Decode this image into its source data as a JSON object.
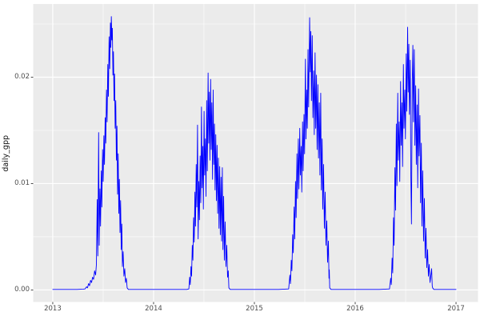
{
  "colors": {
    "panel_background": "#EBEBEB",
    "gridline": "#FFFFFF",
    "series_line": "#0000FF",
    "tick_mark": "#333333",
    "tick_label": "#4D4D4D",
    "axis_title": "#111111",
    "outer_background": "#FFFFFF"
  },
  "chart_data": {
    "type": "line",
    "title": "",
    "xlabel": "",
    "ylabel": "daily_gpp",
    "grid": true,
    "legend": false,
    "x_domain": [
      2012.806,
      2017.218
    ],
    "y_domain": [
      -0.00113,
      0.02688
    ],
    "x_ticks": [
      2013,
      2014,
      2015,
      2016,
      2017
    ],
    "x_tick_labels": [
      "2013",
      "2014",
      "2015",
      "2016",
      "2017"
    ],
    "x_minor_ticks": [
      2013.5,
      2014.5,
      2015.5,
      2016.5
    ],
    "y_ticks": [
      0,
      0.01,
      0.02
    ],
    "y_tick_labels": [
      "0.00",
      "0.01",
      "0.02"
    ],
    "y_minor_ticks": [
      0.005,
      0.015,
      0.025
    ],
    "series": [
      {
        "name": "daily_gpp",
        "color": "#0000FF",
        "points": [
          [
            2013.0,
            5e-05
          ],
          [
            2013.08,
            5e-05
          ],
          [
            2013.16,
            5e-05
          ],
          [
            2013.24,
            5e-05
          ],
          [
            2013.3,
            8e-05
          ],
          [
            2013.32,
            0.0001
          ],
          [
            2013.335,
            0.0003
          ],
          [
            2013.345,
            0.0002
          ],
          [
            2013.355,
            0.0006
          ],
          [
            2013.365,
            0.0004
          ],
          [
            2013.375,
            0.0009
          ],
          [
            2013.385,
            0.0007
          ],
          [
            2013.395,
            0.0012
          ],
          [
            2013.405,
            0.001
          ],
          [
            2013.415,
            0.0018
          ],
          [
            2013.425,
            0.0014
          ],
          [
            2013.433,
            0.0024
          ],
          [
            2013.441,
            0.0085
          ],
          [
            2013.447,
            0.0032
          ],
          [
            2013.455,
            0.0148
          ],
          [
            2013.461,
            0.0042
          ],
          [
            2013.468,
            0.0095
          ],
          [
            2013.474,
            0.006
          ],
          [
            2013.481,
            0.0112
          ],
          [
            2013.487,
            0.0078
          ],
          [
            2013.494,
            0.0132
          ],
          [
            2013.5,
            0.0102
          ],
          [
            2013.507,
            0.0145
          ],
          [
            2013.513,
            0.0118
          ],
          [
            2013.52,
            0.0162
          ],
          [
            2013.526,
            0.0138
          ],
          [
            2013.533,
            0.0188
          ],
          [
            2013.539,
            0.0158
          ],
          [
            2013.546,
            0.0212
          ],
          [
            2013.552,
            0.0182
          ],
          [
            2013.559,
            0.0238
          ],
          [
            2013.565,
            0.0208
          ],
          [
            2013.572,
            0.0251
          ],
          [
            2013.576,
            0.0228
          ],
          [
            2013.581,
            0.0257
          ],
          [
            2013.586,
            0.0235
          ],
          [
            2013.591,
            0.0246
          ],
          [
            2013.597,
            0.0202
          ],
          [
            2013.602,
            0.0224
          ],
          [
            2013.608,
            0.0178
          ],
          [
            2013.613,
            0.0203
          ],
          [
            2013.619,
            0.0152
          ],
          [
            2013.625,
            0.0178
          ],
          [
            2013.631,
            0.0122
          ],
          [
            2013.637,
            0.0154
          ],
          [
            2013.643,
            0.009
          ],
          [
            2013.649,
            0.0128
          ],
          [
            2013.655,
            0.0072
          ],
          [
            2013.661,
            0.0104
          ],
          [
            2013.667,
            0.0054
          ],
          [
            2013.673,
            0.0084
          ],
          [
            2013.679,
            0.0038
          ],
          [
            2013.685,
            0.0062
          ],
          [
            2013.691,
            0.0022
          ],
          [
            2013.698,
            0.0036
          ],
          [
            2013.706,
            0.0013
          ],
          [
            2013.714,
            0.002
          ],
          [
            2013.722,
            0.0007
          ],
          [
            2013.73,
            0.0011
          ],
          [
            2013.738,
            0.0002
          ],
          [
            2013.75,
            5e-05
          ],
          [
            2013.85,
            5e-05
          ],
          [
            2013.95,
            5e-05
          ],
          [
            2014.05,
            5e-05
          ],
          [
            2014.15,
            5e-05
          ],
          [
            2014.25,
            5e-05
          ],
          [
            2014.33,
            5e-05
          ],
          [
            2014.35,
            0.0001
          ],
          [
            2014.358,
            0.0012
          ],
          [
            2014.364,
            0.0005
          ],
          [
            2014.371,
            0.0022
          ],
          [
            2014.377,
            0.0013
          ],
          [
            2014.384,
            0.0042
          ],
          [
            2014.39,
            0.0028
          ],
          [
            2014.397,
            0.0068
          ],
          [
            2014.403,
            0.0045
          ],
          [
            2014.41,
            0.0092
          ],
          [
            2014.416,
            0.006
          ],
          [
            2014.423,
            0.0118
          ],
          [
            2014.429,
            0.0078
          ],
          [
            2014.436,
            0.0155
          ],
          [
            2014.442,
            0.0048
          ],
          [
            2014.449,
            0.0102
          ],
          [
            2014.455,
            0.0066
          ],
          [
            2014.462,
            0.0126
          ],
          [
            2014.468,
            0.0082
          ],
          [
            2014.475,
            0.0172
          ],
          [
            2014.481,
            0.0096
          ],
          [
            2014.488,
            0.0135
          ],
          [
            2014.494,
            0.0076
          ],
          [
            2014.501,
            0.0168
          ],
          [
            2014.507,
            0.0108
          ],
          [
            2014.514,
            0.0142
          ],
          [
            2014.52,
            0.0088
          ],
          [
            2014.527,
            0.0178
          ],
          [
            2014.533,
            0.0112
          ],
          [
            2014.541,
            0.0204
          ],
          [
            2014.547,
            0.0138
          ],
          [
            2014.553,
            0.0186
          ],
          [
            2014.559,
            0.0122
          ],
          [
            2014.566,
            0.0198
          ],
          [
            2014.572,
            0.0132
          ],
          [
            2014.578,
            0.0176
          ],
          [
            2014.585,
            0.0104
          ],
          [
            2014.591,
            0.0188
          ],
          [
            2014.597,
            0.0118
          ],
          [
            2014.604,
            0.0156
          ],
          [
            2014.61,
            0.0094
          ],
          [
            2014.617,
            0.0146
          ],
          [
            2014.623,
            0.0084
          ],
          [
            2014.63,
            0.0136
          ],
          [
            2014.636,
            0.0072
          ],
          [
            2014.643,
            0.0124
          ],
          [
            2014.649,
            0.0058
          ],
          [
            2014.656,
            0.0116
          ],
          [
            2014.662,
            0.0052
          ],
          [
            2014.669,
            0.0106
          ],
          [
            2014.675,
            0.0046
          ],
          [
            2014.682,
            0.0115
          ],
          [
            2014.688,
            0.0038
          ],
          [
            2014.695,
            0.0088
          ],
          [
            2014.702,
            0.0028
          ],
          [
            2014.71,
            0.0064
          ],
          [
            2014.718,
            0.0022
          ],
          [
            2014.726,
            0.0042
          ],
          [
            2014.734,
            0.0012
          ],
          [
            2014.741,
            0.0018
          ],
          [
            2014.747,
            0.0002
          ],
          [
            2014.76,
            5e-05
          ],
          [
            2014.88,
            5e-05
          ],
          [
            2015.0,
            5e-05
          ],
          [
            2015.12,
            5e-05
          ],
          [
            2015.24,
            5e-05
          ],
          [
            2015.34,
            0.0001
          ],
          [
            2015.352,
            0.0014
          ],
          [
            2015.358,
            0.0006
          ],
          [
            2015.366,
            0.0028
          ],
          [
            2015.372,
            0.0018
          ],
          [
            2015.38,
            0.0052
          ],
          [
            2015.386,
            0.0035
          ],
          [
            2015.394,
            0.0078
          ],
          [
            2015.4,
            0.0048
          ],
          [
            2015.408,
            0.0102
          ],
          [
            2015.414,
            0.0068
          ],
          [
            2015.422,
            0.0128
          ],
          [
            2015.428,
            0.0086
          ],
          [
            2015.436,
            0.0142
          ],
          [
            2015.442,
            0.0095
          ],
          [
            2015.45,
            0.0152
          ],
          [
            2015.456,
            0.0108
          ],
          [
            2015.464,
            0.0135
          ],
          [
            2015.47,
            0.0092
          ],
          [
            2015.478,
            0.0158
          ],
          [
            2015.484,
            0.0112
          ],
          [
            2015.492,
            0.0165
          ],
          [
            2015.498,
            0.0128
          ],
          [
            2015.506,
            0.0217
          ],
          [
            2015.512,
            0.0142
          ],
          [
            2015.519,
            0.0188
          ],
          [
            2015.525,
            0.0152
          ],
          [
            2015.532,
            0.0226
          ],
          [
            2015.538,
            0.0172
          ],
          [
            2015.548,
            0.0256
          ],
          [
            2015.554,
            0.0205
          ],
          [
            2015.56,
            0.0243
          ],
          [
            2015.566,
            0.0178
          ],
          [
            2015.574,
            0.0239
          ],
          [
            2015.58,
            0.0162
          ],
          [
            2015.588,
            0.0206
          ],
          [
            2015.594,
            0.0146
          ],
          [
            2015.602,
            0.0223
          ],
          [
            2015.608,
            0.0152
          ],
          [
            2015.616,
            0.0202
          ],
          [
            2015.622,
            0.0132
          ],
          [
            2015.63,
            0.0193
          ],
          [
            2015.636,
            0.0124
          ],
          [
            2015.644,
            0.0176
          ],
          [
            2015.65,
            0.0108
          ],
          [
            2015.658,
            0.0185
          ],
          [
            2015.664,
            0.0094
          ],
          [
            2015.672,
            0.0142
          ],
          [
            2015.678,
            0.0076
          ],
          [
            2015.686,
            0.0118
          ],
          [
            2015.694,
            0.0058
          ],
          [
            2015.702,
            0.0092
          ],
          [
            2015.71,
            0.0042
          ],
          [
            2015.718,
            0.0065
          ],
          [
            2015.726,
            0.0026
          ],
          [
            2015.734,
            0.0046
          ],
          [
            2015.74,
            0.0011
          ],
          [
            2015.743,
            0.0019
          ],
          [
            2015.747,
            0.0002
          ],
          [
            2015.76,
            5e-05
          ],
          [
            2015.88,
            5e-05
          ],
          [
            2016.0,
            5e-05
          ],
          [
            2016.12,
            5e-05
          ],
          [
            2016.24,
            5e-05
          ],
          [
            2016.34,
            0.0001
          ],
          [
            2016.352,
            0.0011
          ],
          [
            2016.358,
            0.0005
          ],
          [
            2016.366,
            0.003
          ],
          [
            2016.372,
            0.0016
          ],
          [
            2016.38,
            0.0068
          ],
          [
            2016.386,
            0.0042
          ],
          [
            2016.394,
            0.0115
          ],
          [
            2016.4,
            0.0075
          ],
          [
            2016.408,
            0.0156
          ],
          [
            2016.414,
            0.0098
          ],
          [
            2016.422,
            0.0185
          ],
          [
            2016.428,
            0.0122
          ],
          [
            2016.436,
            0.0158
          ],
          [
            2016.442,
            0.0102
          ],
          [
            2016.45,
            0.0196
          ],
          [
            2016.456,
            0.0136
          ],
          [
            2016.464,
            0.0176
          ],
          [
            2016.47,
            0.0116
          ],
          [
            2016.478,
            0.0212
          ],
          [
            2016.484,
            0.0152
          ],
          [
            2016.492,
            0.0188
          ],
          [
            2016.498,
            0.0142
          ],
          [
            2016.506,
            0.0222
          ],
          [
            2016.512,
            0.0168
          ],
          [
            2016.52,
            0.0247
          ],
          [
            2016.526,
            0.0186
          ],
          [
            2016.532,
            0.0231
          ],
          [
            2016.538,
            0.0165
          ],
          [
            2016.546,
            0.0216
          ],
          [
            2016.552,
            0.0106
          ],
          [
            2016.558,
            0.0062
          ],
          [
            2016.566,
            0.0196
          ],
          [
            2016.572,
            0.023
          ],
          [
            2016.578,
            0.0158
          ],
          [
            2016.586,
            0.0226
          ],
          [
            2016.592,
            0.0136
          ],
          [
            2016.6,
            0.0192
          ],
          [
            2016.606,
            0.0118
          ],
          [
            2016.614,
            0.0174
          ],
          [
            2016.62,
            0.0096
          ],
          [
            2016.628,
            0.0189
          ],
          [
            2016.634,
            0.0126
          ],
          [
            2016.642,
            0.0164
          ],
          [
            2016.648,
            0.0082
          ],
          [
            2016.656,
            0.0138
          ],
          [
            2016.662,
            0.006
          ],
          [
            2016.67,
            0.0112
          ],
          [
            2016.678,
            0.0046
          ],
          [
            2016.686,
            0.0086
          ],
          [
            2016.694,
            0.003
          ],
          [
            2016.702,
            0.0058
          ],
          [
            2016.71,
            0.0021
          ],
          [
            2016.718,
            0.0038
          ],
          [
            2016.726,
            0.0013
          ],
          [
            2016.734,
            0.0024
          ],
          [
            2016.742,
            0.0007
          ],
          [
            2016.75,
            0.0013
          ],
          [
            2016.758,
            0.002
          ],
          [
            2016.764,
            0.0004
          ],
          [
            2016.768,
            0.0002
          ],
          [
            2016.78,
            5e-05
          ],
          [
            2016.86,
            5e-05
          ],
          [
            2016.94,
            5e-05
          ],
          [
            2017.0,
            5e-05
          ]
        ]
      }
    ]
  }
}
